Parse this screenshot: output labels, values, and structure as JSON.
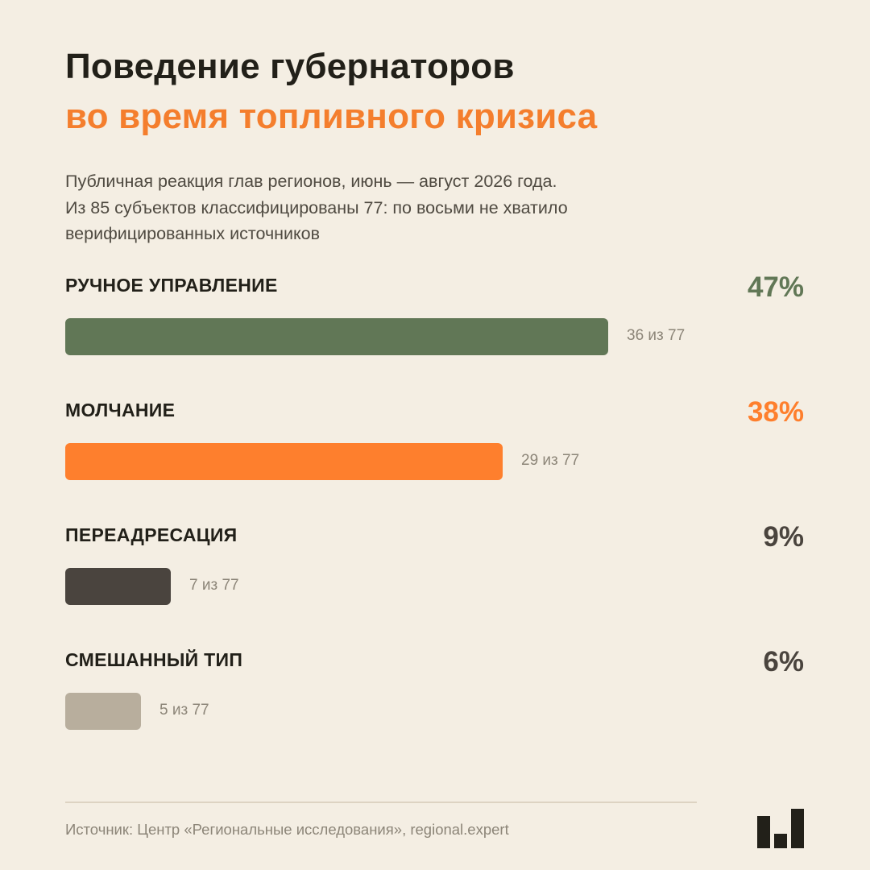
{
  "header": {
    "title_line1": "Поведение губернаторов",
    "title_line2": "во время топливного кризиса",
    "subtitle_lines": [
      "Публичная реакция глав регионов, июнь — август 2026 года.",
      "Из 85 субъектов классифицированы 77: по восьми не хватило",
      "верифицированных источников"
    ]
  },
  "chart_data": {
    "type": "bar",
    "orientation": "horizontal",
    "total": 77,
    "categories": [
      "РУЧНОЕ УПРАВЛЕНИЕ",
      "МОЛЧАНИЕ",
      "ПЕРЕАДРЕСАЦИЯ",
      "СМЕШАННЫЙ ТИП"
    ],
    "values": [
      36,
      29,
      7,
      5
    ],
    "percent_labels": [
      "47%",
      "38%",
      "9%",
      "6%"
    ],
    "count_labels": [
      "36 из 77",
      "29 из 77",
      "7 из 77",
      "5 из 77"
    ],
    "colors": [
      "#617756",
      "#fe7f2d",
      "#4a443e",
      "#b8ae9d"
    ],
    "percent_colors": [
      "#617756",
      "#fe7f2d",
      "#4a443e",
      "#4a443e"
    ],
    "grid": false,
    "legend": "none"
  },
  "footer": {
    "source": "Источник: Центр «Региональные исследования», regional.expert",
    "logo_icon": "bar-chart-logo-icon"
  }
}
